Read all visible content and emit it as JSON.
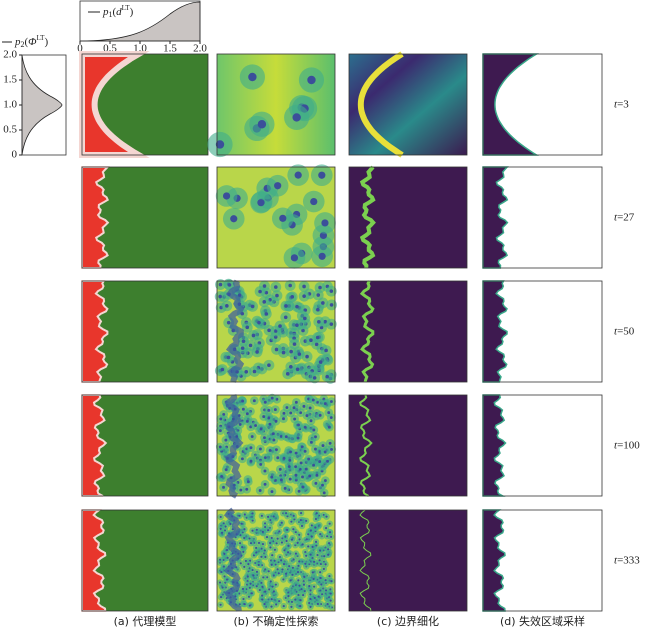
{
  "top_plot": {
    "label": {
      "symbol": "p",
      "sub": "1",
      "open": "(",
      "var": "d",
      "sup": "LT",
      "close": ")"
    },
    "ticks": [
      "0",
      "0.5",
      "1.0",
      "1.5",
      "2.0"
    ]
  },
  "left_plot": {
    "label": {
      "symbol": "p",
      "sub": "2",
      "open": "(",
      "var": "Φ",
      "sup": "LT",
      "close": ")"
    },
    "ticks": [
      "2.0",
      "1.5",
      "1.0",
      "0.5",
      "0"
    ]
  },
  "rows": [
    {
      "var": "t",
      "rest": "=3"
    },
    {
      "var": "t",
      "rest": "=27"
    },
    {
      "var": "t",
      "rest": "=50"
    },
    {
      "var": "t",
      "rest": "=100"
    },
    {
      "var": "t",
      "rest": "=333"
    }
  ],
  "captions": [
    "(a) 代理模型",
    "(b) 不确定性探索",
    "(c) 边界细化",
    "(d) 失效区域采样"
  ]
}
